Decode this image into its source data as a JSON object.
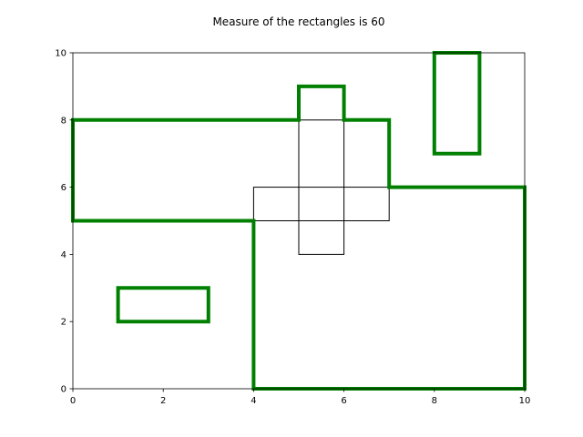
{
  "chart_data": {
    "type": "rectangles",
    "title": "Measure of the rectangles is 60",
    "xlabel": "",
    "ylabel": "",
    "xlim": [
      0,
      10
    ],
    "ylim": [
      0,
      10
    ],
    "xticks": [
      "0",
      "2",
      "4",
      "6",
      "8",
      "10"
    ],
    "yticks": [
      "0",
      "2",
      "4",
      "6",
      "8",
      "10"
    ],
    "grid": false,
    "colors": {
      "outline": "#008000",
      "rect": "#000000",
      "axis": "#000000"
    },
    "thin_rectangles": [
      {
        "x0": 0,
        "y0": 5,
        "x1": 7,
        "y1": 8
      },
      {
        "x0": 5,
        "y0": 4,
        "x1": 6,
        "y1": 9
      },
      {
        "x0": 4,
        "y0": 0,
        "x1": 10,
        "y1": 6
      },
      {
        "x0": 1,
        "y0": 2,
        "x1": 3,
        "y1": 3
      },
      {
        "x0": 8,
        "y0": 7,
        "x1": 9,
        "y1": 10
      }
    ],
    "union_outlines": [
      {
        "points": [
          [
            0,
            8
          ],
          [
            5,
            8
          ],
          [
            5,
            9
          ],
          [
            6,
            9
          ],
          [
            6,
            8
          ],
          [
            7,
            8
          ],
          [
            7,
            6
          ],
          [
            10,
            6
          ],
          [
            10,
            0
          ],
          [
            4,
            0
          ],
          [
            4,
            5
          ],
          [
            0,
            5
          ]
        ]
      },
      {
        "points": [
          [
            1,
            2
          ],
          [
            3,
            2
          ],
          [
            3,
            3
          ],
          [
            1,
            3
          ]
        ]
      },
      {
        "points": [
          [
            8,
            7
          ],
          [
            9,
            7
          ],
          [
            9,
            10
          ],
          [
            8,
            10
          ]
        ]
      }
    ]
  }
}
